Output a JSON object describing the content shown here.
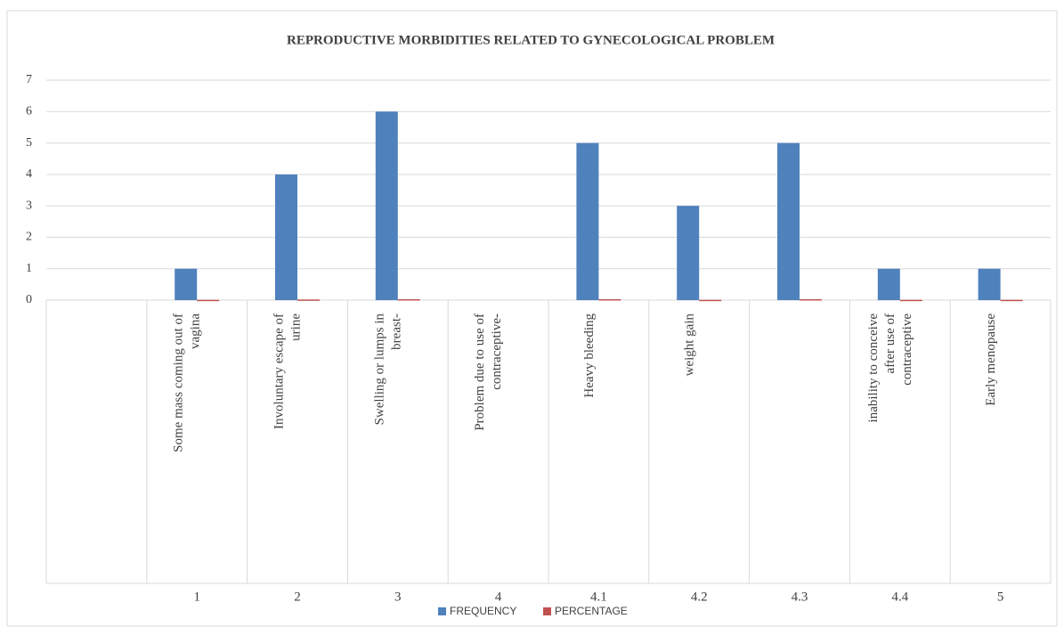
{
  "chart_data": {
    "type": "bar",
    "title": "REPRODUCTIVE MORBIDITIES RELATED TO GYNECOLOGICAL PROBLEM",
    "categories": [
      null,
      "Some mass coming out of vagina",
      "Involuntary escape of urine",
      "Swelling or lumps in breast-",
      "Problem due to use of contraceptive-",
      "Heavy bleeding",
      "weight gain",
      null,
      "inability to conceive after use of contraceptive",
      "Early menopause"
    ],
    "groups": [
      null,
      "1",
      "2",
      "3",
      "4",
      "4.1",
      "4.2",
      "4.3",
      "4.4",
      "5"
    ],
    "series": [
      {
        "name": "FREQUENCY",
        "color": "#4f81bd",
        "values": [
          null,
          1,
          4,
          6,
          null,
          5,
          3,
          5,
          1,
          1
        ]
      },
      {
        "name": "PERCENTAGE",
        "color": "#c0504d",
        "values": [
          null,
          0.01,
          0.02,
          0.03,
          null,
          0.03,
          0.01,
          0.03,
          0.01,
          0.01
        ]
      }
    ],
    "ylim": [
      0,
      7
    ],
    "yticks": [
      0,
      1,
      2,
      3,
      4,
      5,
      6,
      7
    ],
    "grid": true,
    "legend": "bottom"
  }
}
